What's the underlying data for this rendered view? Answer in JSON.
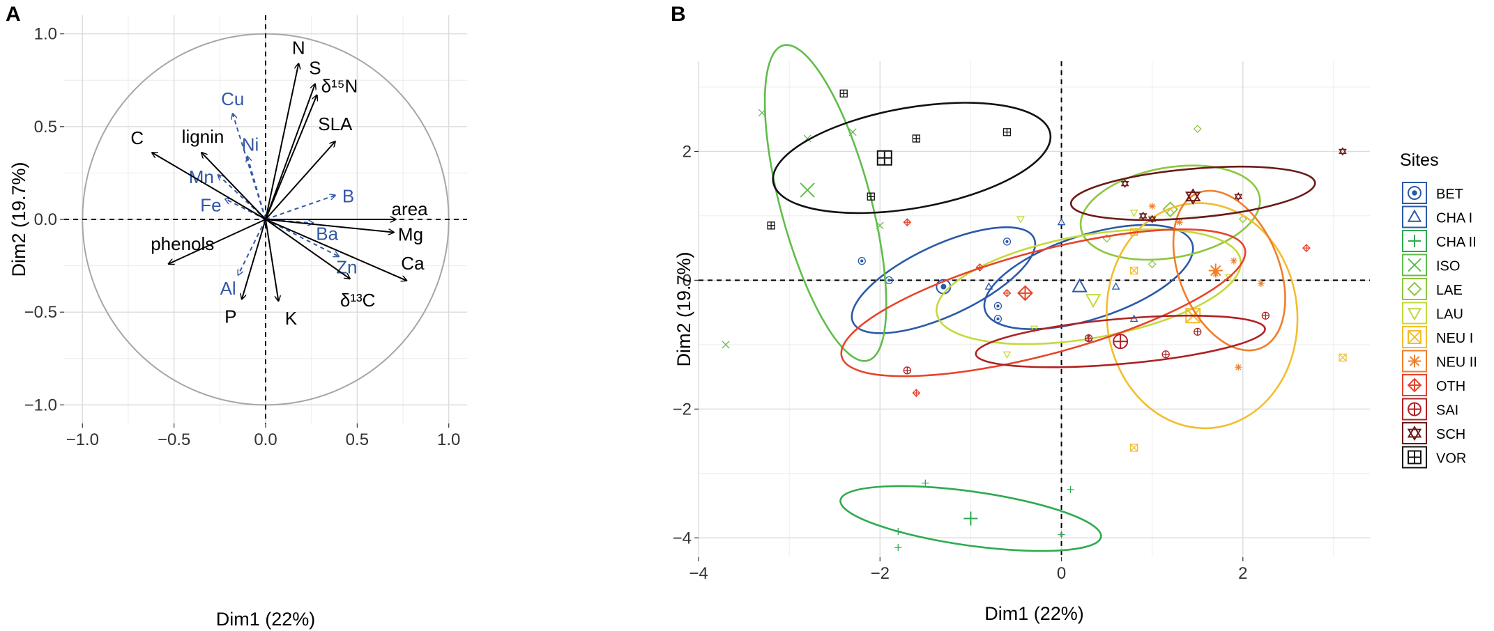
{
  "chart_data": [
    {
      "type": "scatter",
      "subtype": "pca-correlation-circle",
      "panel_label": "A",
      "xlabel": "Dim1 (22%)",
      "ylabel": "Dim2 (19.7%)",
      "xlim": [
        -1.1,
        1.1
      ],
      "ylim": [
        -1.1,
        1.1
      ],
      "xticks": [
        -1.0,
        -0.5,
        0.0,
        0.5,
        1.0
      ],
      "yticks": [
        -1.0,
        -0.5,
        0.0,
        0.5,
        1.0
      ],
      "xtick_labels": [
        "−1.0",
        "−0.5",
        "0.0",
        "0.5",
        "1.0"
      ],
      "ytick_labels": [
        "−1.0",
        "−0.5",
        "0.0",
        "0.5",
        "1.0"
      ],
      "grid": true,
      "colors": {
        "active": "#000000",
        "supplementary": "#3358a6",
        "circle": "#a6a6a6"
      },
      "active_vectors": [
        {
          "name": "N",
          "x": 0.18,
          "y": 0.84
        },
        {
          "name": "S",
          "x": 0.27,
          "y": 0.73
        },
        {
          "name": "δ¹⁵N",
          "x": 0.28,
          "y": 0.67
        },
        {
          "name": "SLA",
          "x": 0.38,
          "y": 0.42
        },
        {
          "name": "C",
          "x": -0.62,
          "y": 0.36
        },
        {
          "name": "lignin",
          "x": -0.35,
          "y": 0.36
        },
        {
          "name": "area",
          "x": 0.71,
          "y": 0.0
        },
        {
          "name": "Mg",
          "x": 0.7,
          "y": -0.07
        },
        {
          "name": "Ca",
          "x": 0.77,
          "y": -0.33
        },
        {
          "name": "δ¹³C",
          "x": 0.46,
          "y": -0.32
        },
        {
          "name": "phenols",
          "x": -0.53,
          "y": -0.24
        },
        {
          "name": "P",
          "x": -0.13,
          "y": -0.43
        },
        {
          "name": "K",
          "x": 0.07,
          "y": -0.44
        }
      ],
      "supplementary_vectors": [
        {
          "name": "Cu",
          "x": -0.18,
          "y": 0.57
        },
        {
          "name": "Ni",
          "x": -0.1,
          "y": 0.34
        },
        {
          "name": "Mn",
          "x": -0.26,
          "y": 0.24
        },
        {
          "name": "Fe",
          "x": -0.22,
          "y": 0.11
        },
        {
          "name": "B",
          "x": 0.38,
          "y": 0.13
        },
        {
          "name": "Ba",
          "x": 0.26,
          "y": -0.02
        },
        {
          "name": "Zn",
          "x": 0.4,
          "y": -0.2
        },
        {
          "name": "Al",
          "x": -0.15,
          "y": -0.3
        }
      ]
    },
    {
      "type": "scatter",
      "subtype": "pca-individuals",
      "panel_label": "B",
      "xlabel": "Dim1 (22%)",
      "ylabel": "Dim2 (19.7%)",
      "xlim": [
        -4.0,
        3.4
      ],
      "ylim": [
        -4.3,
        3.4
      ],
      "xticks": [
        -4,
        -2,
        0,
        2
      ],
      "yticks": [
        -4,
        -2,
        0,
        2
      ],
      "xtick_labels": [
        "−4",
        "−2",
        "0",
        "2"
      ],
      "ytick_labels": [
        "−4",
        "−2",
        "0",
        "2"
      ],
      "grid": true,
      "legend_title": "Sites",
      "legend_position": "right",
      "series": [
        {
          "name": "BET",
          "color": "#2a5aa8",
          "marker": "circle-dot",
          "centroid": [
            -1.3,
            -0.1
          ],
          "ellipse": {
            "cx": -1.3,
            "cy": 0.0,
            "rx": 1.1,
            "ry": 0.55,
            "angle": -25
          },
          "points": [
            [
              -2.2,
              0.3
            ],
            [
              -1.9,
              0.0
            ],
            [
              -0.6,
              0.6
            ],
            [
              -0.7,
              -0.4
            ],
            [
              -0.7,
              -0.6
            ]
          ]
        },
        {
          "name": "CHA I",
          "color": "#2a5aa8",
          "marker": "triangle",
          "centroid": [
            0.2,
            -0.1
          ],
          "ellipse": {
            "cx": 0.3,
            "cy": 0.05,
            "rx": 1.2,
            "ry": 0.65,
            "angle": -18
          },
          "points": [
            [
              0.0,
              0.9
            ],
            [
              -0.8,
              -0.1
            ],
            [
              0.3,
              -0.9
            ],
            [
              0.6,
              -0.1
            ],
            [
              0.8,
              -0.6
            ]
          ]
        },
        {
          "name": "CHA II",
          "color": "#2eaa4f",
          "marker": "plus",
          "centroid": [
            -1.0,
            -3.7
          ],
          "ellipse": {
            "cx": -1.0,
            "cy": -3.7,
            "rx": 1.45,
            "ry": 0.42,
            "angle": 8
          },
          "points": [
            [
              -1.8,
              -3.9
            ],
            [
              -1.8,
              -4.15
            ],
            [
              -1.5,
              -3.15
            ],
            [
              0.1,
              -3.25
            ],
            [
              0.0,
              -3.95
            ]
          ]
        },
        {
          "name": "ISO",
          "color": "#5fbd4a",
          "marker": "cross",
          "centroid": [
            -2.8,
            1.4
          ],
          "ellipse": {
            "cx": -2.6,
            "cy": 1.2,
            "rx": 1.8,
            "ry": 0.7,
            "angle": 75
          },
          "points": [
            [
              -3.3,
              2.6
            ],
            [
              -2.8,
              2.2
            ],
            [
              -2.3,
              2.3
            ],
            [
              -2.0,
              0.85
            ],
            [
              -3.7,
              -1.0
            ]
          ]
        },
        {
          "name": "LAE",
          "color": "#8dc63f",
          "marker": "diamond",
          "centroid": [
            1.2,
            1.1
          ],
          "ellipse": {
            "cx": 1.2,
            "cy": 1.05,
            "rx": 1.0,
            "ry": 0.7,
            "angle": -10
          },
          "points": [
            [
              1.5,
              2.35
            ],
            [
              1.0,
              0.25
            ],
            [
              0.5,
              0.65
            ],
            [
              2.0,
              0.95
            ],
            [
              1.2,
              1.05
            ]
          ]
        },
        {
          "name": "LAU",
          "color": "#c4d93a",
          "marker": "triangle-down",
          "centroid": [
            0.35,
            -0.3
          ],
          "ellipse": {
            "cx": 0.3,
            "cy": -0.1,
            "rx": 1.7,
            "ry": 0.8,
            "angle": -10
          },
          "points": [
            [
              -0.45,
              0.95
            ],
            [
              -0.3,
              -0.75
            ],
            [
              -0.6,
              -1.15
            ],
            [
              0.8,
              1.05
            ],
            [
              1.85,
              0.05
            ]
          ]
        },
        {
          "name": "NEU I",
          "color": "#f2bd2e",
          "marker": "square-cross",
          "centroid": [
            1.45,
            -0.55
          ],
          "ellipse": {
            "cx": 1.55,
            "cy": -0.55,
            "rx": 1.05,
            "ry": 1.75,
            "angle": -5
          },
          "points": [
            [
              0.8,
              0.15
            ],
            [
              0.8,
              0.75
            ],
            [
              0.8,
              -2.6
            ],
            [
              3.1,
              -1.2
            ]
          ]
        },
        {
          "name": "NEU II",
          "color": "#f07e29",
          "marker": "asterisk",
          "centroid": [
            1.7,
            0.15
          ],
          "ellipse": {
            "cx": 1.85,
            "cy": 0.15,
            "rx": 0.55,
            "ry": 1.3,
            "angle": -22
          },
          "points": [
            [
              1.0,
              1.15
            ],
            [
              1.9,
              0.3
            ],
            [
              2.2,
              -0.05
            ],
            [
              1.95,
              -1.35
            ],
            [
              1.3,
              0.9
            ],
            [
              1.7,
              0.1
            ]
          ]
        },
        {
          "name": "OTH",
          "color": "#e8432a",
          "marker": "diamond-plus",
          "centroid": [
            -0.4,
            -0.2
          ],
          "ellipse": {
            "cx": -0.2,
            "cy": -0.35,
            "rx": 2.3,
            "ry": 0.8,
            "angle": -15
          },
          "points": [
            [
              -1.7,
              0.9
            ],
            [
              -1.6,
              -1.75
            ],
            [
              -0.6,
              -0.2
            ],
            [
              -0.9,
              0.2
            ],
            [
              2.7,
              0.5
            ]
          ]
        },
        {
          "name": "SAI",
          "color": "#b02224",
          "marker": "circle-plus",
          "centroid": [
            0.65,
            -0.95
          ],
          "ellipse": {
            "cx": 0.65,
            "cy": -0.95,
            "rx": 1.6,
            "ry": 0.35,
            "angle": -5
          },
          "points": [
            [
              -1.7,
              -1.4
            ],
            [
              0.3,
              -0.9
            ],
            [
              1.15,
              -1.15
            ],
            [
              1.5,
              -0.8
            ],
            [
              2.25,
              -0.55
            ]
          ]
        },
        {
          "name": "SCH",
          "color": "#6b1a18",
          "marker": "hexagram",
          "centroid": [
            1.45,
            1.3
          ],
          "ellipse": {
            "cx": 1.45,
            "cy": 1.35,
            "rx": 1.35,
            "ry": 0.38,
            "angle": -5
          },
          "points": [
            [
              0.7,
              1.5
            ],
            [
              0.9,
              1.0
            ],
            [
              1.0,
              0.95
            ],
            [
              1.95,
              1.3
            ],
            [
              3.1,
              2.0
            ]
          ]
        },
        {
          "name": "VOR",
          "color": "#111111",
          "marker": "square-plus",
          "centroid": [
            -1.95,
            1.9
          ],
          "ellipse": {
            "cx": -1.65,
            "cy": 1.9,
            "rx": 1.55,
            "ry": 0.78,
            "angle": -10
          },
          "points": [
            [
              -2.4,
              2.9
            ],
            [
              -1.6,
              2.2
            ],
            [
              -2.1,
              1.3
            ],
            [
              -0.6,
              2.3
            ],
            [
              -3.2,
              0.85
            ]
          ]
        }
      ]
    }
  ]
}
